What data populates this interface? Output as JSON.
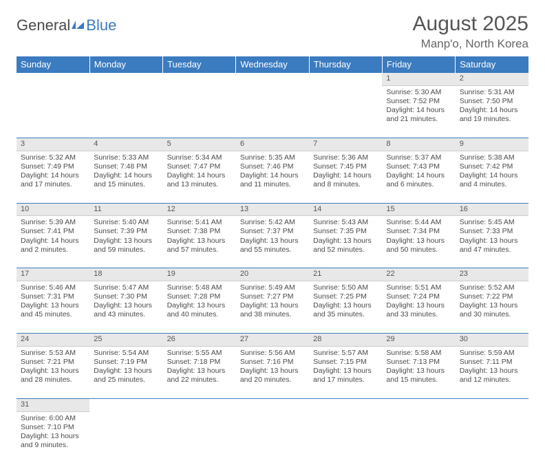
{
  "brand": {
    "part1": "General",
    "part2": "Blue"
  },
  "title": "August 2025",
  "location": "Manp'o, North Korea",
  "colors": {
    "header_bg": "#3b7bbf",
    "header_text": "#ffffff",
    "daynum_bg": "#e8e8e8",
    "border": "#3b7bbf",
    "text": "#4a4a4a"
  },
  "weekdays": [
    "Sunday",
    "Monday",
    "Tuesday",
    "Wednesday",
    "Thursday",
    "Friday",
    "Saturday"
  ],
  "weeks": [
    [
      null,
      null,
      null,
      null,
      null,
      {
        "n": "1",
        "sr": "5:30 AM",
        "ss": "7:52 PM",
        "dl": "14 hours and 21 minutes."
      },
      {
        "n": "2",
        "sr": "5:31 AM",
        "ss": "7:50 PM",
        "dl": "14 hours and 19 minutes."
      }
    ],
    [
      {
        "n": "3",
        "sr": "5:32 AM",
        "ss": "7:49 PM",
        "dl": "14 hours and 17 minutes."
      },
      {
        "n": "4",
        "sr": "5:33 AM",
        "ss": "7:48 PM",
        "dl": "14 hours and 15 minutes."
      },
      {
        "n": "5",
        "sr": "5:34 AM",
        "ss": "7:47 PM",
        "dl": "14 hours and 13 minutes."
      },
      {
        "n": "6",
        "sr": "5:35 AM",
        "ss": "7:46 PM",
        "dl": "14 hours and 11 minutes."
      },
      {
        "n": "7",
        "sr": "5:36 AM",
        "ss": "7:45 PM",
        "dl": "14 hours and 8 minutes."
      },
      {
        "n": "8",
        "sr": "5:37 AM",
        "ss": "7:43 PM",
        "dl": "14 hours and 6 minutes."
      },
      {
        "n": "9",
        "sr": "5:38 AM",
        "ss": "7:42 PM",
        "dl": "14 hours and 4 minutes."
      }
    ],
    [
      {
        "n": "10",
        "sr": "5:39 AM",
        "ss": "7:41 PM",
        "dl": "14 hours and 2 minutes."
      },
      {
        "n": "11",
        "sr": "5:40 AM",
        "ss": "7:39 PM",
        "dl": "13 hours and 59 minutes."
      },
      {
        "n": "12",
        "sr": "5:41 AM",
        "ss": "7:38 PM",
        "dl": "13 hours and 57 minutes."
      },
      {
        "n": "13",
        "sr": "5:42 AM",
        "ss": "7:37 PM",
        "dl": "13 hours and 55 minutes."
      },
      {
        "n": "14",
        "sr": "5:43 AM",
        "ss": "7:35 PM",
        "dl": "13 hours and 52 minutes."
      },
      {
        "n": "15",
        "sr": "5:44 AM",
        "ss": "7:34 PM",
        "dl": "13 hours and 50 minutes."
      },
      {
        "n": "16",
        "sr": "5:45 AM",
        "ss": "7:33 PM",
        "dl": "13 hours and 47 minutes."
      }
    ],
    [
      {
        "n": "17",
        "sr": "5:46 AM",
        "ss": "7:31 PM",
        "dl": "13 hours and 45 minutes."
      },
      {
        "n": "18",
        "sr": "5:47 AM",
        "ss": "7:30 PM",
        "dl": "13 hours and 43 minutes."
      },
      {
        "n": "19",
        "sr": "5:48 AM",
        "ss": "7:28 PM",
        "dl": "13 hours and 40 minutes."
      },
      {
        "n": "20",
        "sr": "5:49 AM",
        "ss": "7:27 PM",
        "dl": "13 hours and 38 minutes."
      },
      {
        "n": "21",
        "sr": "5:50 AM",
        "ss": "7:25 PM",
        "dl": "13 hours and 35 minutes."
      },
      {
        "n": "22",
        "sr": "5:51 AM",
        "ss": "7:24 PM",
        "dl": "13 hours and 33 minutes."
      },
      {
        "n": "23",
        "sr": "5:52 AM",
        "ss": "7:22 PM",
        "dl": "13 hours and 30 minutes."
      }
    ],
    [
      {
        "n": "24",
        "sr": "5:53 AM",
        "ss": "7:21 PM",
        "dl": "13 hours and 28 minutes."
      },
      {
        "n": "25",
        "sr": "5:54 AM",
        "ss": "7:19 PM",
        "dl": "13 hours and 25 minutes."
      },
      {
        "n": "26",
        "sr": "5:55 AM",
        "ss": "7:18 PM",
        "dl": "13 hours and 22 minutes."
      },
      {
        "n": "27",
        "sr": "5:56 AM",
        "ss": "7:16 PM",
        "dl": "13 hours and 20 minutes."
      },
      {
        "n": "28",
        "sr": "5:57 AM",
        "ss": "7:15 PM",
        "dl": "13 hours and 17 minutes."
      },
      {
        "n": "29",
        "sr": "5:58 AM",
        "ss": "7:13 PM",
        "dl": "13 hours and 15 minutes."
      },
      {
        "n": "30",
        "sr": "5:59 AM",
        "ss": "7:11 PM",
        "dl": "13 hours and 12 minutes."
      }
    ],
    [
      {
        "n": "31",
        "sr": "6:00 AM",
        "ss": "7:10 PM",
        "dl": "13 hours and 9 minutes."
      },
      null,
      null,
      null,
      null,
      null,
      null
    ]
  ],
  "labels": {
    "sunrise": "Sunrise:",
    "sunset": "Sunset:",
    "daylight": "Daylight:"
  }
}
